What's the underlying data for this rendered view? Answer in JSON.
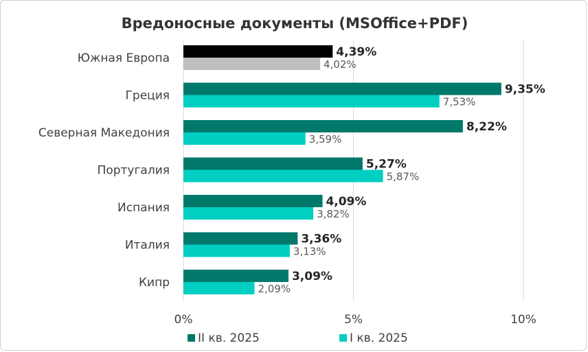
{
  "chart_data": {
    "type": "bar",
    "orientation": "horizontal",
    "title": "Вредоносные документы (MSOffice+PDF)",
    "categories": [
      "Южная Европа",
      "Греция",
      "Северная Македония",
      "Португалия",
      "Испания",
      "Италия",
      "Кипр"
    ],
    "series": [
      {
        "name": "II кв. 2025",
        "color": "#00796b",
        "values": [
          4.39,
          9.35,
          8.22,
          5.27,
          4.09,
          3.36,
          3.09
        ],
        "labels": [
          "4,39%",
          "9,35%",
          "8,22%",
          "5,27%",
          "4,09%",
          "3,36%",
          "3,09%"
        ],
        "first_bar_color": "#000000"
      },
      {
        "name": "I кв. 2025",
        "color": "#00cfc1",
        "values": [
          4.02,
          7.53,
          3.59,
          5.87,
          3.82,
          3.13,
          2.09
        ],
        "labels": [
          "4,02%",
          "7,53%",
          "3,59%",
          "5,87%",
          "3,82%",
          "3,13%",
          "2,09%"
        ],
        "first_bar_color": "#bfbfbf"
      }
    ],
    "xlim": [
      0,
      10
    ],
    "xticks": [
      0,
      5,
      10
    ],
    "xtick_labels": [
      "0%",
      "5%",
      "10%"
    ],
    "grid": true,
    "legend_position": "bottom"
  }
}
